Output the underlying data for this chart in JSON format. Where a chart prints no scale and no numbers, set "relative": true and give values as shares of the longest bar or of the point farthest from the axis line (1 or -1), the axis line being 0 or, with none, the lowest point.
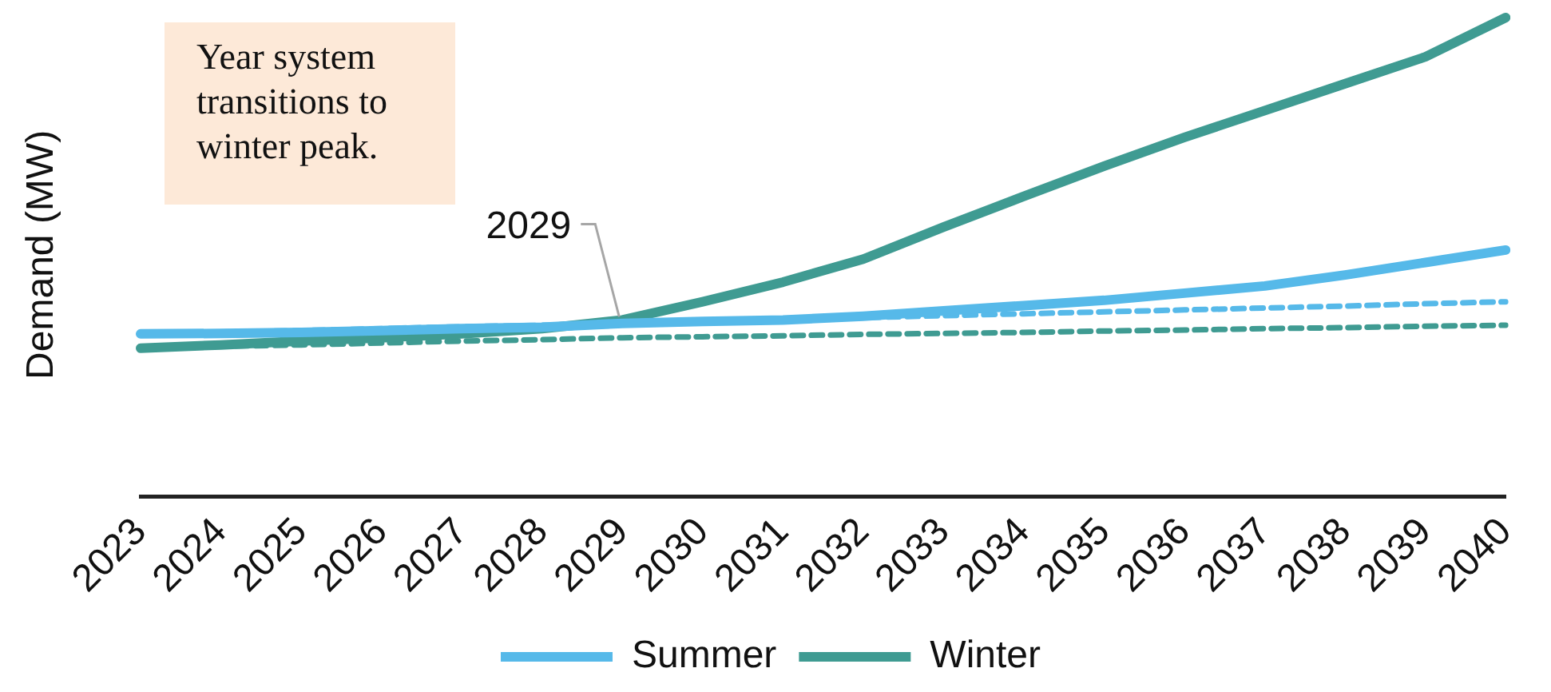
{
  "chart_data": {
    "type": "line",
    "relative": true,
    "ylabel": "Demand (MW)",
    "legend": "bottom",
    "grid": false,
    "categories": [
      "2023",
      "2024",
      "2025",
      "2026",
      "2027",
      "2028",
      "2029",
      "2030",
      "2031",
      "2032",
      "2033",
      "2034",
      "2035",
      "2036",
      "2037",
      "2038",
      "2039",
      "2040"
    ],
    "series": [
      {
        "name": "Summer",
        "color": "#56b9e9",
        "values": [
          0.34,
          0.341,
          0.343,
          0.347,
          0.351,
          0.354,
          0.362,
          0.366,
          0.369,
          0.377,
          0.388,
          0.399,
          0.41,
          0.425,
          0.44,
          0.463,
          0.489,
          0.515
        ]
      },
      {
        "name": "Winter",
        "color": "#3f9b92",
        "values": [
          0.31,
          0.317,
          0.325,
          0.332,
          0.34,
          0.351,
          0.369,
          0.407,
          0.448,
          0.496,
          0.563,
          0.627,
          0.69,
          0.75,
          0.806,
          0.862,
          0.918,
          1
        ]
      },
      {
        "color": "#56b9e9",
        "line_style": "dashed",
        "values": [
          0.34,
          0.344,
          0.347,
          0.351,
          0.355,
          0.358,
          0.362,
          0.366,
          0.37,
          0.374,
          0.378,
          0.382,
          0.386,
          0.39,
          0.394,
          0.398,
          0.403,
          0.407
        ]
      },
      {
        "color": "#3f9b92",
        "line_style": "dashed",
        "values": [
          0.31,
          0.314,
          0.317,
          0.321,
          0.325,
          0.328,
          0.332,
          0.334,
          0.336,
          0.339,
          0.341,
          0.343,
          0.346,
          0.348,
          0.351,
          0.353,
          0.356,
          0.358
        ]
      }
    ],
    "annotations": [
      "Year system transitions to winter peak.",
      {
        "text": "2029",
        "x": "2029",
        "y": 0.369
      }
    ]
  }
}
